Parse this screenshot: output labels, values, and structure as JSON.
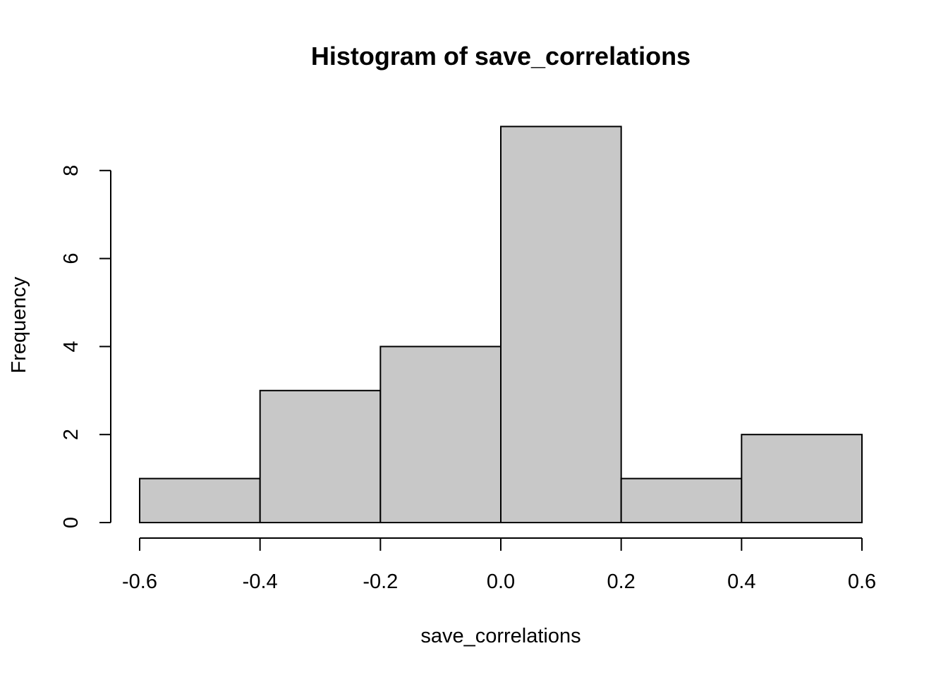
{
  "chart_data": {
    "type": "bar",
    "title": "Histogram of save_correlations",
    "xlabel": "save_correlations",
    "ylabel": "Frequency",
    "bins": [
      {
        "from": -0.6,
        "to": -0.4,
        "count": 1
      },
      {
        "from": -0.4,
        "to": -0.2,
        "count": 3
      },
      {
        "from": -0.2,
        "to": 0.0,
        "count": 4
      },
      {
        "from": 0.0,
        "to": 0.2,
        "count": 9
      },
      {
        "from": 0.2,
        "to": 0.4,
        "count": 1
      },
      {
        "from": 0.4,
        "to": 0.6,
        "count": 2
      }
    ],
    "xticks": [
      "-0.6",
      "-0.4",
      "-0.2",
      "0.0",
      "0.2",
      "0.4",
      "0.6"
    ],
    "xtick_values": [
      -0.6,
      -0.4,
      -0.2,
      0.0,
      0.2,
      0.4,
      0.6
    ],
    "yticks": [
      "0",
      "2",
      "4",
      "6",
      "8"
    ],
    "ytick_values": [
      0,
      2,
      4,
      6,
      8
    ],
    "xlim": [
      -0.6,
      0.6
    ],
    "ylim": [
      0,
      9
    ],
    "grid": false,
    "bar_color": "#c8c8c8",
    "edge_color": "#000000"
  }
}
